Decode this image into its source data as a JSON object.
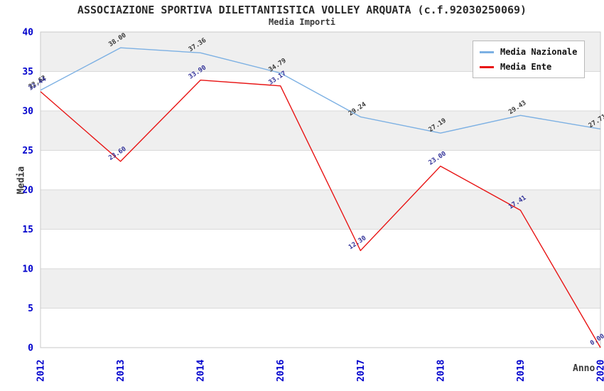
{
  "chart": {
    "title": "ASSOCIAZIONE SPORTIVA DILETTANTISTICA VOLLEY ARQUATA (c.f.92030250069)",
    "subtitle": "Media Importi",
    "xlabel": "Anno",
    "ylabel": "Media"
  },
  "chart_data": {
    "type": "line",
    "title": "Media Importi",
    "xlabel": "Anno",
    "ylabel": "Media",
    "categories": [
      "2012",
      "2013",
      "2014",
      "2016",
      "2017",
      "2018",
      "2019",
      "2020"
    ],
    "series": [
      {
        "name": "Media Nazionale",
        "color": "#7cb0e3",
        "label_color": "#3a3a3a",
        "values": [
          32.62,
          38.0,
          37.36,
          34.79,
          29.24,
          27.19,
          29.43,
          27.71
        ]
      },
      {
        "name": "Media Ente",
        "color": "#e81414",
        "label_color": "#333399",
        "values": [
          32.44,
          23.6,
          33.9,
          33.17,
          12.3,
          23.0,
          17.41,
          0.0
        ]
      }
    ],
    "ylim": [
      0,
      40
    ],
    "ytick_step": 5,
    "grid": "horizontal",
    "band_fill": true,
    "legend_position": "top-right",
    "point_label_format": "2-decimals"
  },
  "style": {
    "tick_label_color": "#0000cc",
    "axis_label_color": "#3a3a3a",
    "title_color": "#2b2b2b",
    "band_color": "#efefef",
    "gridline_color": "#d9d9d9",
    "plot_border_color": "#c9c9c9",
    "background": "#ffffff"
  }
}
